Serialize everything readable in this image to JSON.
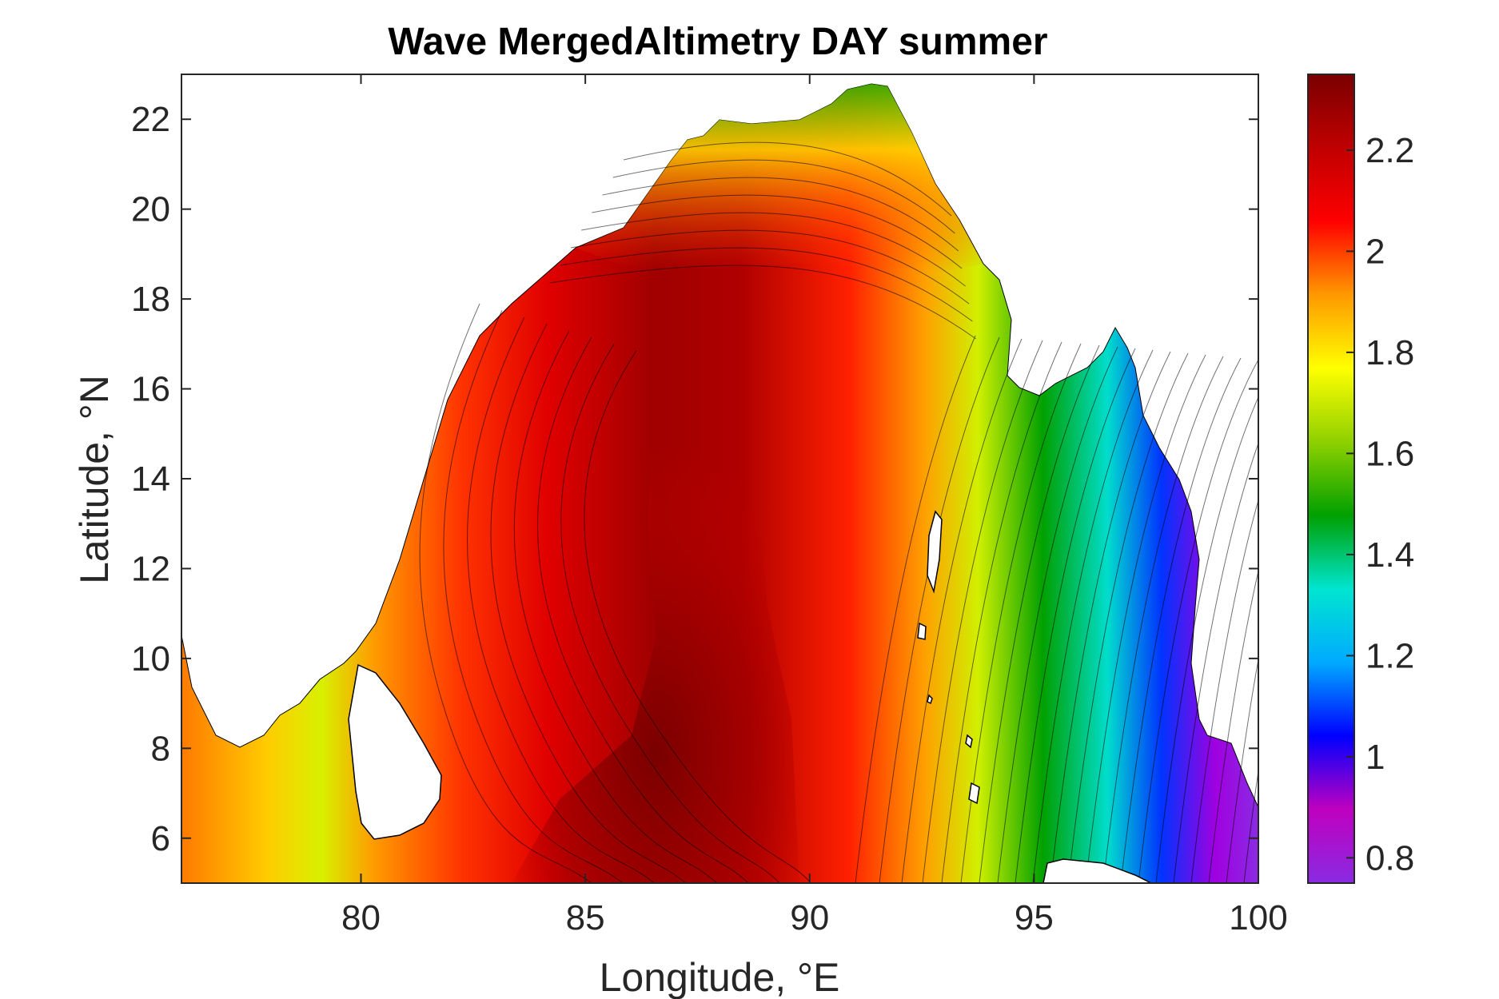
{
  "title": "Wave MergedAltimetry DAY summer",
  "axes": {
    "xlabel": "Longitude, °E",
    "ylabel": "Latitude, °N",
    "xlim": [
      76,
      100
    ],
    "ylim": [
      5,
      23
    ],
    "xticks": [
      80,
      85,
      90,
      95,
      100
    ],
    "yticks": [
      6,
      8,
      10,
      12,
      14,
      16,
      18,
      20,
      22
    ]
  },
  "colorbar": {
    "colormap": "jet-like (purple to dark red)",
    "range": [
      0.75,
      2.35
    ],
    "ticks": [
      0.8,
      1,
      1.2,
      1.4,
      1.6,
      1.8,
      2,
      2.2
    ],
    "stops": [
      "#8a2be2",
      "#bf00bf",
      "#0000ff",
      "#00aaff",
      "#00e5d0",
      "#00a000",
      "#8fd000",
      "#ffff00",
      "#ff9900",
      "#ff0000",
      "#c00000",
      "#7a0000"
    ]
  },
  "chart_data": {
    "type": "heatmap",
    "title": "Wave MergedAltimetry DAY summer",
    "xlabel": "Longitude, °E",
    "ylabel": "Latitude, °N",
    "xlim": [
      76,
      100
    ],
    "ylim": [
      5,
      23
    ],
    "value_range": [
      0.75,
      2.35
    ],
    "field_description": "Filled contours of significant wave height over the Bay of Bengal; maximum about 2.35 near 88°E, 5–8°N; minimum about 0.8 east of 98°E",
    "grid": false,
    "colorbar_location": "right"
  }
}
